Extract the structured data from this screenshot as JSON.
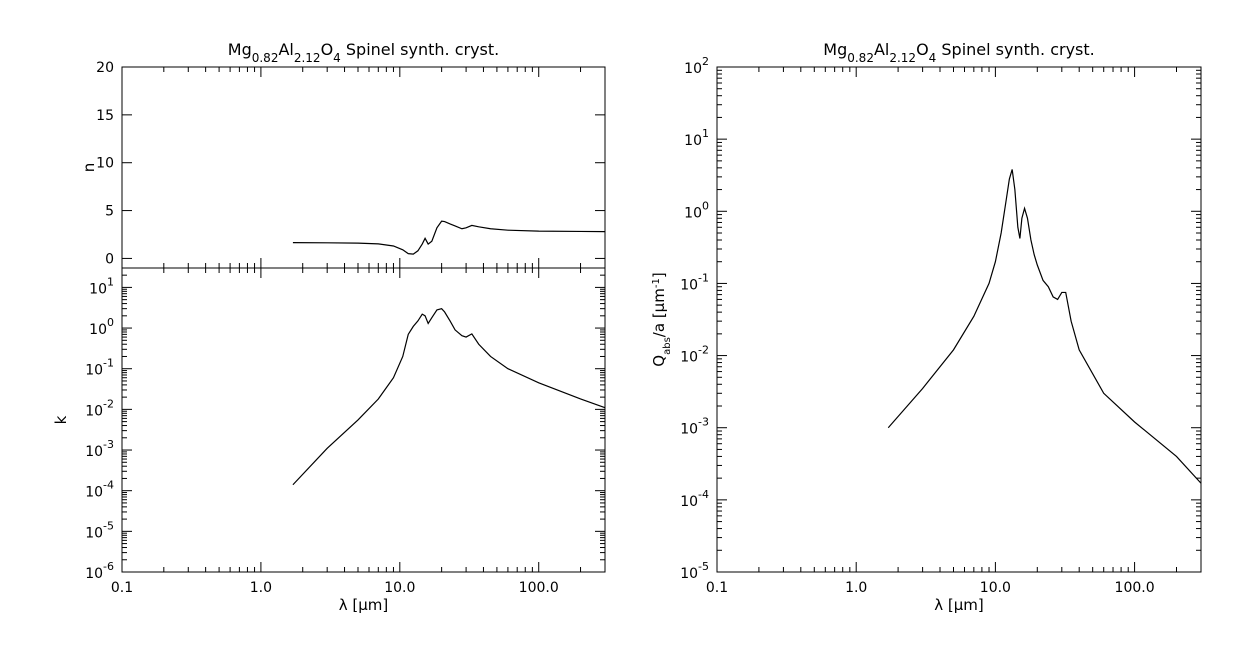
{
  "chart_data": [
    {
      "type": "line",
      "panel": "n",
      "title": "Mg0.82Al2.12O4 Spinel synth. cryst.",
      "title_parts": {
        "a": "Mg",
        "a_sub": "0.82",
        "b": "Al",
        "b_sub": "2.12",
        "c": "O",
        "c_sub": "4",
        "rest": " Spinel synth. cryst."
      },
      "xlabel": "",
      "ylabel": "n",
      "xscale": "log",
      "yscale": "linear",
      "xlim": [
        0.1,
        300
      ],
      "ylim": [
        -1,
        20
      ],
      "xticks": [
        "0.1",
        "1.0",
        "10.0",
        "100.0"
      ],
      "yticks": [
        0,
        5,
        10,
        15,
        20
      ],
      "x": [
        1.7,
        3,
        5,
        7,
        9,
        10.5,
        11.5,
        12.5,
        13.5,
        14.5,
        15.2,
        16,
        17,
        18.5,
        20,
        21,
        23,
        25,
        28,
        30,
        33,
        37,
        45,
        60,
        100,
        200,
        300
      ],
      "y": [
        1.65,
        1.63,
        1.6,
        1.52,
        1.3,
        0.9,
        0.5,
        0.45,
        0.8,
        1.5,
        2.1,
        1.5,
        1.8,
        3.2,
        3.9,
        3.85,
        3.6,
        3.4,
        3.1,
        3.2,
        3.45,
        3.3,
        3.1,
        2.95,
        2.85,
        2.82,
        2.8
      ]
    },
    {
      "type": "line",
      "panel": "k",
      "title": "",
      "xlabel": "λ [μm]",
      "ylabel": "k",
      "xscale": "log",
      "yscale": "log",
      "xlim": [
        0.1,
        300
      ],
      "ylim": [
        1e-06,
        30
      ],
      "xticks": [
        "0.1",
        "1.0",
        "10.0",
        "100.0"
      ],
      "yticks": [
        {
          "base": "10",
          "exp": "1",
          "value": 10
        },
        {
          "base": "10",
          "exp": "0",
          "value": 1
        },
        {
          "base": "10",
          "exp": "-1",
          "value": 0.1
        },
        {
          "base": "10",
          "exp": "-2",
          "value": 0.01
        },
        {
          "base": "10",
          "exp": "-3",
          "value": 0.001
        },
        {
          "base": "10",
          "exp": "-4",
          "value": 0.0001
        },
        {
          "base": "10",
          "exp": "-5",
          "value": 1e-05
        },
        {
          "base": "10",
          "exp": "-6",
          "value": 1e-06
        }
      ],
      "x": [
        1.7,
        3,
        5,
        7,
        9,
        10.5,
        11.5,
        12.5,
        13.5,
        14.5,
        15.2,
        16,
        17,
        18.5,
        20,
        21,
        23,
        25,
        28,
        30,
        33,
        37,
        45,
        60,
        100,
        200,
        300
      ],
      "y": [
        0.00014,
        0.0011,
        0.0055,
        0.018,
        0.06,
        0.2,
        0.7,
        1.1,
        1.5,
        2.2,
        2.0,
        1.3,
        1.8,
        2.8,
        3.0,
        2.5,
        1.5,
        0.9,
        0.65,
        0.6,
        0.72,
        0.4,
        0.2,
        0.1,
        0.045,
        0.018,
        0.011
      ]
    },
    {
      "type": "line",
      "panel": "qabs",
      "title": "Mg0.82Al2.12O4 Spinel synth. cryst.",
      "title_parts": {
        "a": "Mg",
        "a_sub": "0.82",
        "b": "Al",
        "b_sub": "2.12",
        "c": "O",
        "c_sub": "4",
        "rest": " Spinel synth. cryst."
      },
      "xlabel": "λ [μm]",
      "ylabel": "Qabs/a [μm-1]",
      "ylabel_parts": {
        "main": "Q",
        "sub": "abs",
        "mid": "/a [μm",
        "sup": "-1",
        "end": "]"
      },
      "xscale": "log",
      "yscale": "log",
      "xlim": [
        0.1,
        300
      ],
      "ylim": [
        1e-05,
        100
      ],
      "xticks": [
        "0.1",
        "1.0",
        "10.0",
        "100.0"
      ],
      "yticks": [
        {
          "base": "10",
          "exp": "2",
          "value": 100
        },
        {
          "base": "10",
          "exp": "1",
          "value": 10
        },
        {
          "base": "10",
          "exp": "0",
          "value": 1
        },
        {
          "base": "10",
          "exp": "-1",
          "value": 0.1
        },
        {
          "base": "10",
          "exp": "-2",
          "value": 0.01
        },
        {
          "base": "10",
          "exp": "-3",
          "value": 0.001
        },
        {
          "base": "10",
          "exp": "-4",
          "value": 0.0001
        },
        {
          "base": "10",
          "exp": "-5",
          "value": 1e-05
        }
      ],
      "x": [
        1.7,
        3,
        5,
        7,
        9,
        10,
        11,
        12,
        12.6,
        13.2,
        13.8,
        14.5,
        15,
        15.5,
        16.2,
        17,
        18,
        19,
        20,
        22,
        24,
        26,
        28,
        30,
        32,
        35,
        40,
        60,
        100,
        200,
        300
      ],
      "y": [
        0.001,
        0.0035,
        0.012,
        0.035,
        0.1,
        0.2,
        0.5,
        1.5,
        2.8,
        3.8,
        2.0,
        0.6,
        0.42,
        0.8,
        1.1,
        0.8,
        0.4,
        0.25,
        0.18,
        0.11,
        0.09,
        0.065,
        0.06,
        0.075,
        0.075,
        0.03,
        0.012,
        0.003,
        0.0012,
        0.0004,
        0.00017
      ]
    }
  ]
}
